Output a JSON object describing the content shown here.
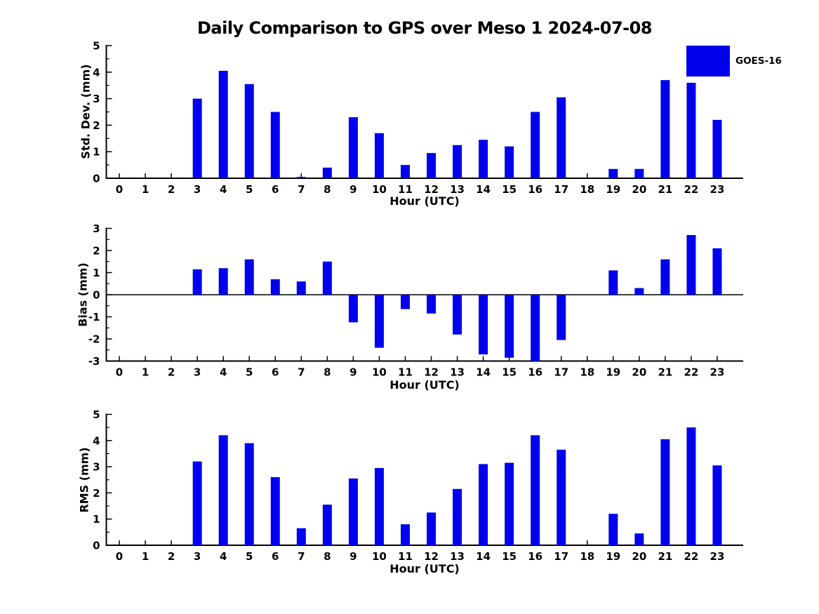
{
  "title": "Daily Comparison to GPS over Meso 1 2024-07-08",
  "legend": {
    "label": "GOES-16",
    "swatch_color": "#0000ee"
  },
  "chart_data": [
    {
      "type": "bar",
      "series_name": "GOES-16",
      "ylabel": "Std. Dev. (mm)",
      "xlabel": "Hour (UTC)",
      "categories": [
        0,
        1,
        2,
        3,
        4,
        5,
        6,
        7,
        8,
        9,
        10,
        11,
        12,
        13,
        14,
        15,
        16,
        17,
        18,
        19,
        20,
        21,
        22,
        23
      ],
      "values": [
        0,
        0,
        0,
        3.0,
        4.05,
        3.55,
        2.5,
        0.05,
        0.4,
        2.3,
        1.7,
        0.5,
        0.95,
        1.25,
        1.45,
        1.2,
        2.5,
        3.05,
        0,
        0.35,
        0.35,
        3.7,
        3.6,
        2.2
      ],
      "ylim": [
        0,
        5
      ],
      "yticks": [
        0,
        1,
        2,
        3,
        4,
        5
      ],
      "xlim": [
        -0.5,
        24
      ],
      "grid": false,
      "bar_color": "#0000ee"
    },
    {
      "type": "bar",
      "series_name": "GOES-16",
      "ylabel": "Bias (mm)",
      "xlabel": "Hour (UTC)",
      "categories": [
        0,
        1,
        2,
        3,
        4,
        5,
        6,
        7,
        8,
        9,
        10,
        11,
        12,
        13,
        14,
        15,
        16,
        17,
        18,
        19,
        20,
        21,
        22,
        23
      ],
      "values": [
        0,
        0,
        0,
        1.15,
        1.2,
        1.6,
        0.7,
        0.6,
        1.5,
        -1.25,
        -2.4,
        -0.65,
        -0.85,
        -1.8,
        -2.7,
        -2.85,
        -3.0,
        -2.05,
        0,
        1.1,
        0.3,
        1.6,
        2.7,
        2.1
      ],
      "ylim": [
        -3,
        3
      ],
      "yticks": [
        -3,
        -2,
        -1,
        0,
        1,
        2,
        3
      ],
      "xlim": [
        -0.5,
        24
      ],
      "grid": false,
      "zero_line": true,
      "bar_color": "#0000ee"
    },
    {
      "type": "bar",
      "series_name": "GOES-16",
      "ylabel": "RMS (mm)",
      "xlabel": "Hour (UTC)",
      "categories": [
        0,
        1,
        2,
        3,
        4,
        5,
        6,
        7,
        8,
        9,
        10,
        11,
        12,
        13,
        14,
        15,
        16,
        17,
        18,
        19,
        20,
        21,
        22,
        23
      ],
      "values": [
        0,
        0,
        0,
        3.2,
        4.2,
        3.9,
        2.6,
        0.65,
        1.55,
        2.55,
        2.95,
        0.8,
        1.25,
        2.15,
        3.1,
        3.15,
        4.2,
        3.65,
        0,
        1.2,
        0.45,
        4.05,
        4.5,
        3.05
      ],
      "ylim": [
        0,
        5
      ],
      "yticks": [
        0,
        1,
        2,
        3,
        4,
        5
      ],
      "xlim": [
        -0.5,
        24
      ],
      "grid": false,
      "bar_color": "#0000ee"
    }
  ]
}
